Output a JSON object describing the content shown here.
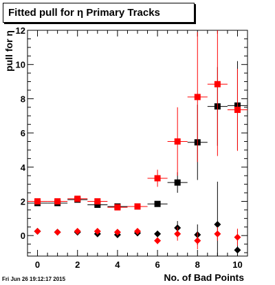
{
  "chart_data": {
    "type": "scatter",
    "title": "Fitted pull for  η Primary Tracks",
    "xlabel": "No. of Bad Points",
    "ylabel": "pull for  η",
    "timestamp": "Fri Jun 26 19:12:17 2015",
    "xlim": [
      -0.5,
      10.5
    ],
    "ylim": [
      -1.2,
      12.0
    ],
    "xticks": [
      0,
      2,
      4,
      6,
      8,
      10
    ],
    "yticks": [
      0,
      2,
      4,
      6,
      8,
      10,
      12
    ],
    "grid": false,
    "series": [
      {
        "marker": "square",
        "color": "#000000",
        "x": [
          0,
          1,
          2,
          3,
          4,
          5,
          6,
          7,
          8,
          9,
          10
        ],
        "y": [
          1.9,
          1.9,
          2.1,
          1.8,
          1.7,
          1.7,
          1.85,
          3.1,
          5.45,
          7.55,
          7.6
        ],
        "yerr": [
          0.05,
          0.05,
          0.05,
          0.05,
          0.05,
          0.06,
          0.1,
          0.6,
          2.2,
          2.3,
          2.6
        ]
      },
      {
        "marker": "square",
        "color": "#ff0000",
        "x": [
          0,
          1,
          2,
          3,
          4,
          5,
          6,
          7,
          8,
          9,
          10
        ],
        "y": [
          2.0,
          2.0,
          2.15,
          2.0,
          1.65,
          1.7,
          3.35,
          5.5,
          8.1,
          8.85,
          7.35
        ],
        "yerr": [
          0.05,
          0.05,
          0.05,
          0.05,
          0.06,
          0.08,
          0.5,
          2.0,
          3.8,
          4.2,
          2.4
        ]
      },
      {
        "marker": "diamond",
        "color": "#000000",
        "x": [
          0,
          1,
          2,
          3,
          4,
          5,
          6,
          7,
          8,
          9,
          10
        ],
        "y": [
          0.25,
          0.2,
          0.2,
          0.1,
          0.05,
          0.15,
          0.1,
          0.45,
          0.05,
          0.65,
          -0.85
        ],
        "yerr": [
          0.03,
          0.03,
          0.03,
          0.03,
          0.04,
          0.05,
          0.1,
          0.4,
          0.6,
          2.5,
          1.2
        ]
      },
      {
        "marker": "diamond",
        "color": "#ff0000",
        "x": [
          0,
          1,
          2,
          3,
          4,
          5,
          6,
          7,
          8,
          9,
          10
        ],
        "y": [
          0.25,
          0.2,
          0.25,
          0.25,
          0.2,
          0.25,
          -0.3,
          0.1,
          -0.3,
          0.1,
          -0.1
        ],
        "yerr": [
          0.03,
          0.03,
          0.03,
          0.03,
          0.04,
          0.05,
          0.2,
          0.4,
          0.5,
          0.4,
          0.5
        ]
      }
    ]
  }
}
